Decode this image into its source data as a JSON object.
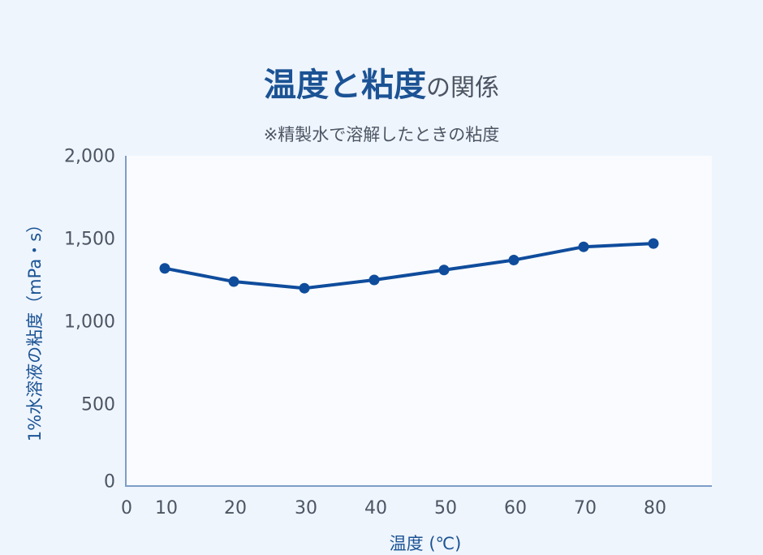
{
  "header": {
    "title_strong": "温度と粘度",
    "title_light": "の関係",
    "subtitle": "※精製水で溶解したときの粘度"
  },
  "axes": {
    "y_ticks": [
      "2,000",
      "1,500",
      "1,000",
      "500",
      "0"
    ],
    "x_ticks": [
      "0",
      "10",
      "20",
      "30",
      "40",
      "50",
      "60",
      "70",
      "80"
    ],
    "ylabel": "1%水溶液の粘度（mPa・s）",
    "xlabel": "温度 (℃)"
  },
  "colors": {
    "series": "#0f4c9c",
    "title": "#1b5394",
    "axis": "#7d9dc7",
    "background": "#eff5fd",
    "plot_background": "#f9fbfe"
  },
  "chart_data": {
    "type": "line",
    "title": "温度と粘度の関係",
    "subtitle": "※精製水で溶解したときの粘度",
    "xlabel": "温度 (℃)",
    "ylabel": "1%水溶液の粘度（mPa・s）",
    "x": [
      10,
      20,
      30,
      40,
      50,
      60,
      70,
      80
    ],
    "series": [
      {
        "name": "粘度",
        "values": [
          1320,
          1240,
          1200,
          1250,
          1310,
          1370,
          1450,
          1470
        ]
      }
    ],
    "ylim": [
      0,
      2000
    ],
    "y_ticks": [
      0,
      500,
      1000,
      1500,
      2000
    ],
    "x_ticks": [
      0,
      10,
      20,
      30,
      40,
      50,
      60,
      70,
      80
    ],
    "grid": false,
    "legend": "none",
    "markers": true
  }
}
